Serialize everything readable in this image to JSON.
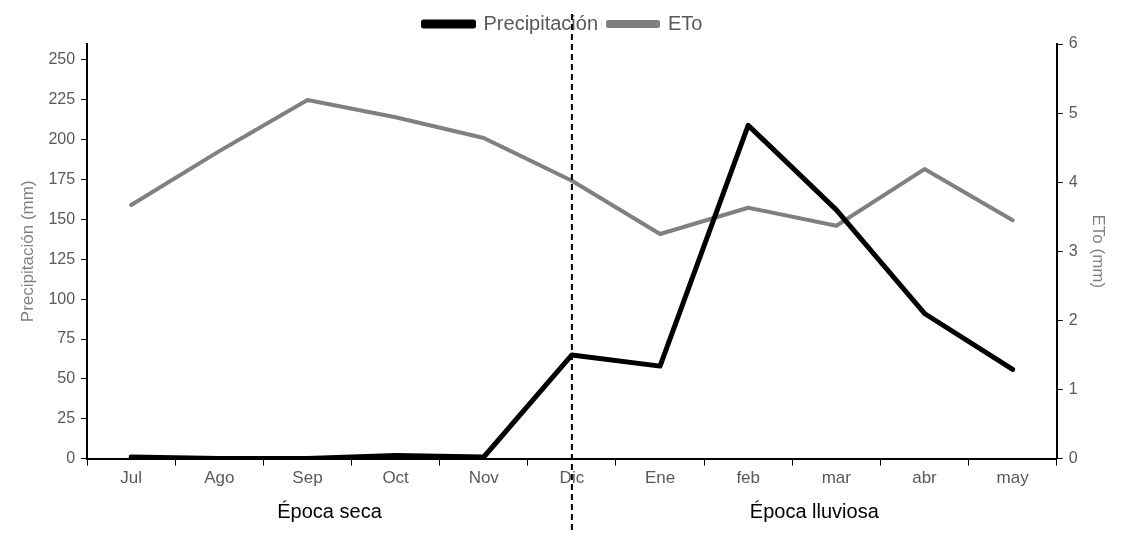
{
  "chart_data": {
    "type": "line",
    "categories": [
      "Jul",
      "Ago",
      "Sep",
      "Oct",
      "Nov",
      "Dic",
      "Ene",
      "feb",
      "mar",
      "abr",
      "may"
    ],
    "series": [
      {
        "name": "Precipitación",
        "color": "#000000",
        "values": [
          1,
          0,
          0,
          2,
          1,
          65,
          58,
          209,
          156,
          91,
          56
        ]
      },
      {
        "name": "ETo",
        "color": "#808080",
        "axis": "y2",
        "values": [
          3.67,
          4.45,
          5.19,
          4.94,
          4.64,
          4.02,
          3.25,
          3.63,
          3.37,
          4.19,
          3.45
        ]
      }
    ],
    "ylabel": "Precipitación (mm)",
    "y2label": "ETo (mm)",
    "ylim": [
      0,
      260
    ],
    "yticks": [
      0,
      25,
      50,
      75,
      100,
      125,
      150,
      175,
      200,
      225,
      250
    ],
    "y2lim": [
      0,
      6
    ],
    "y2ticks": [
      0,
      1,
      2,
      3,
      4,
      5,
      6
    ],
    "ref_lines": [
      {
        "axis": "x",
        "value": "Dic",
        "color": "#000000",
        "line_style": "dashed"
      }
    ],
    "annotations": [
      "Época seca",
      "Época lluviosa"
    ],
    "legend": "top",
    "grid": false,
    "marker": "none",
    "line_style": "solid"
  }
}
